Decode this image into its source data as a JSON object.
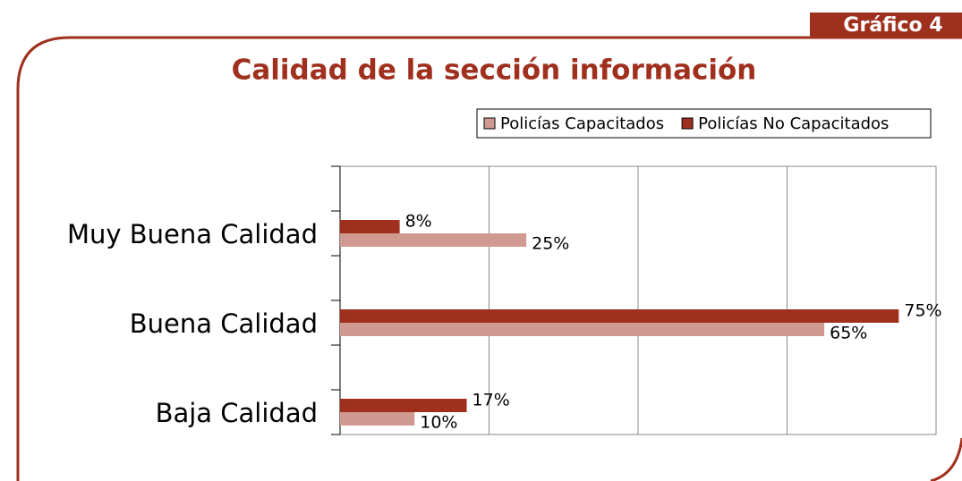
{
  "header": {
    "tag": "Gráfico 4"
  },
  "chart_data": {
    "type": "hbar",
    "title": "Calidad de la sección información",
    "categories": [
      "Muy Buena Calidad",
      "Buena Calidad",
      "Baja Calidad"
    ],
    "series": [
      {
        "name": "Policías Capacitados",
        "color": "#d09a90",
        "values": [
          25,
          65,
          10
        ],
        "value_labels": [
          "25%",
          "65%",
          "10%"
        ]
      },
      {
        "name": "Policías No Capacitados",
        "color": "#a0301e",
        "values": [
          8,
          75,
          17
        ],
        "value_labels": [
          "8%",
          "75%",
          "17%"
        ]
      }
    ],
    "xlim": [
      0,
      80
    ],
    "xticks": [
      0,
      20,
      40,
      60,
      80
    ],
    "grid": true,
    "legend": "top-right"
  }
}
